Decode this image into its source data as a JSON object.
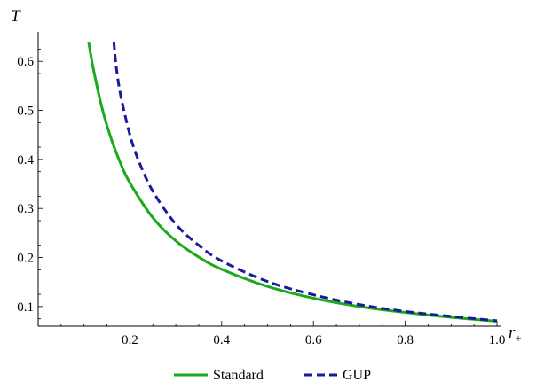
{
  "chart_data": {
    "type": "line",
    "xlabel": "r",
    "xlabel_sub": "+",
    "ylabel": "T",
    "xlim": [
      0.0,
      1.0
    ],
    "ylim": [
      0.06,
      0.66
    ],
    "xticks": [
      0.2,
      0.4,
      0.6,
      0.8,
      1.0
    ],
    "xtick_labels": [
      "0.2",
      "0.4",
      "0.6",
      "0.8",
      "1.0"
    ],
    "yticks": [
      0.1,
      0.2,
      0.3,
      0.4,
      0.5,
      0.6
    ],
    "ytick_labels": [
      "0.1",
      "0.2",
      "0.3",
      "0.4",
      "0.5",
      "0.6"
    ],
    "grid": false,
    "legend_position": "bottom-center",
    "series": [
      {
        "name": "Standard",
        "color": "#1aaa1a",
        "style": "solid",
        "x": [
          0.11,
          0.12,
          0.14,
          0.16,
          0.18,
          0.2,
          0.25,
          0.3,
          0.35,
          0.4,
          0.5,
          0.6,
          0.7,
          0.8,
          0.9,
          1.0
        ],
        "y": [
          0.64,
          0.586,
          0.502,
          0.44,
          0.391,
          0.352,
          0.281,
          0.234,
          0.201,
          0.176,
          0.141,
          0.117,
          0.1,
          0.088,
          0.078,
          0.07
        ]
      },
      {
        "name": "GUP",
        "color": "#1a1a9a",
        "style": "dashed",
        "x": [
          0.165,
          0.17,
          0.18,
          0.2,
          0.22,
          0.25,
          0.3,
          0.35,
          0.4,
          0.5,
          0.6,
          0.7,
          0.8,
          0.9,
          1.0
        ],
        "y": [
          0.64,
          0.59,
          0.53,
          0.45,
          0.395,
          0.335,
          0.268,
          0.225,
          0.193,
          0.151,
          0.124,
          0.104,
          0.09,
          0.08,
          0.071
        ]
      }
    ]
  }
}
